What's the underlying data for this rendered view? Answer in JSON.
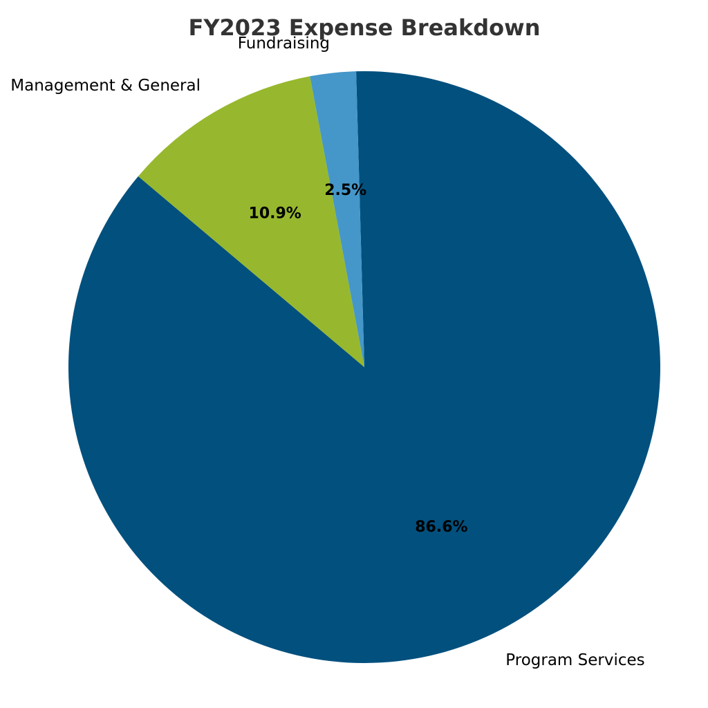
{
  "chart_data": {
    "type": "pie",
    "title": "FY2023 Expense Breakdown",
    "slices": [
      {
        "label": "Program Services",
        "value": 86.6,
        "pct_label": "86.6%",
        "color": "#02507e"
      },
      {
        "label": "Management & General",
        "value": 10.9,
        "pct_label": "10.9%",
        "color": "#97b82e"
      },
      {
        "label": "Fundraising",
        "value": 2.5,
        "pct_label": "2.5%",
        "color": "#4597c9"
      }
    ],
    "legend": "none"
  }
}
